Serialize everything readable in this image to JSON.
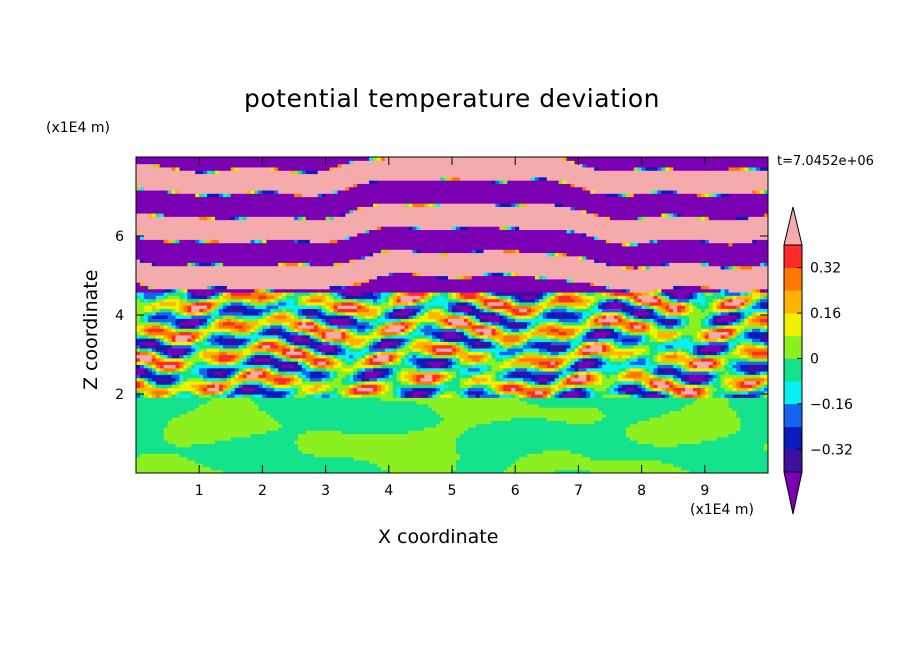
{
  "chart_data": {
    "type": "heatmap",
    "title": "potential temperature deviation",
    "xlabel": "X coordinate",
    "ylabel": "Z coordinate",
    "x_unit": "(x1E4 m)",
    "y_unit": "(x1E4 m)",
    "time_label": "t=7.0452e+06",
    "xlim": [
      0,
      10
    ],
    "ylim": [
      0,
      8
    ],
    "x_ticks": [
      1,
      2,
      3,
      4,
      5,
      6,
      7,
      8,
      9
    ],
    "y_ticks": [
      2,
      4,
      6
    ],
    "colorbar": {
      "levels": [
        -0.48,
        -0.4,
        -0.32,
        -0.24,
        -0.16,
        -0.08,
        0,
        0.08,
        0.16,
        0.24,
        0.32,
        0.4,
        0.48
      ],
      "tick_labels": [
        "0.32",
        "0.16",
        "0",
        "−0.16",
        "−0.32"
      ],
      "tick_values": [
        0.32,
        0.16,
        0,
        -0.16,
        -0.32
      ],
      "colors": [
        "#7b00b4",
        "#3c0fa0",
        "#0c1bbd",
        "#1464f0",
        "#0af0f0",
        "#14e28c",
        "#8cf020",
        "#f0f000",
        "#ffb400",
        "#ff7800",
        "#ff2a2a",
        "#f5abab"
      ],
      "extend": "both"
    },
    "band_layers": [
      {
        "z_range": [
          0,
          1.95
        ],
        "dominant_value": 0.04,
        "secondary_value": -0.04,
        "description_value": "near-zero"
      },
      {
        "z_range": [
          1.95,
          4.6
        ],
        "dominant_value": 0.0,
        "mixed": true
      },
      {
        "z_range": [
          4.6,
          8.0
        ],
        "alternating_values": [
          0.5,
          -0.5
        ]
      }
    ]
  }
}
